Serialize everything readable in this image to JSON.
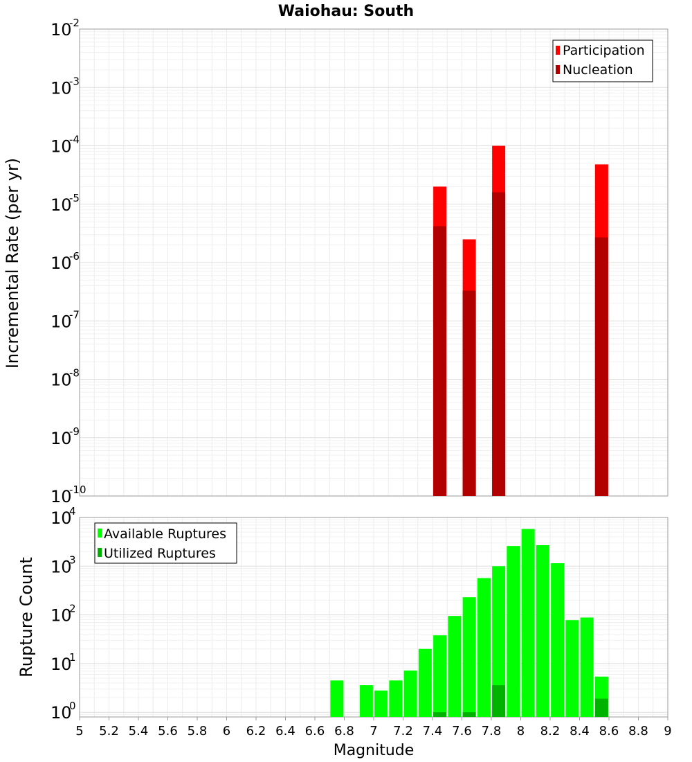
{
  "chart_data": [
    {
      "type": "bar",
      "title": "Waiohau: South",
      "xlabel": "",
      "ylabel": "Incremental Rate (per yr)",
      "yscale": "log",
      "ylim": [
        1e-10,
        0.01
      ],
      "xlim": [
        5,
        9
      ],
      "y_tick_exponents": [
        "-2",
        "-3",
        "-4",
        "-5",
        "-6",
        "-7",
        "-8",
        "-9",
        "-10"
      ],
      "y_tick_base": "10",
      "legend_position": "top-right",
      "series": [
        {
          "name": "Participation",
          "color": "#ff0000",
          "x": [
            7.45,
            7.65,
            7.85,
            8.55
          ],
          "values": [
            2e-05,
            2.5e-06,
            0.0001,
            4.8e-05
          ]
        },
        {
          "name": "Nucleation",
          "color": "#b20000",
          "x": [
            7.45,
            7.65,
            7.85,
            8.55
          ],
          "values": [
            4.2e-06,
            3.3e-07,
            1.6e-05,
            2.7e-06
          ]
        }
      ]
    },
    {
      "type": "bar",
      "title": "",
      "xlabel": "Magnitude",
      "ylabel": "Rupture Count",
      "yscale": "log",
      "ylim": [
        0.8,
        10000
      ],
      "xlim": [
        5,
        9
      ],
      "x_ticks": [
        "5",
        "5.2",
        "5.4",
        "5.6",
        "5.8",
        "6",
        "6.2",
        "6.4",
        "6.6",
        "6.8",
        "7",
        "7.2",
        "7.4",
        "7.6",
        "7.8",
        "8",
        "8.2",
        "8.4",
        "8.6",
        "8.8",
        "9"
      ],
      "y_tick_exponents": [
        "0",
        "1",
        "2",
        "3",
        "4"
      ],
      "y_tick_base": "10",
      "legend_position": "top-left",
      "series": [
        {
          "name": "Available Ruptures",
          "color": "#00ff00",
          "x": [
            6.75,
            6.95,
            7.05,
            7.15,
            7.25,
            7.35,
            7.45,
            7.55,
            7.65,
            7.75,
            7.85,
            7.95,
            8.05,
            8.15,
            8.25,
            8.35,
            8.45,
            8.55
          ],
          "values": [
            4.5,
            3.6,
            2.8,
            4.5,
            7.2,
            20,
            38,
            95,
            230,
            570,
            1000,
            2600,
            5800,
            2700,
            1150,
            78,
            88,
            5.4
          ]
        },
        {
          "name": "Utilized Ruptures",
          "color": "#00b200",
          "x": [
            7.45,
            7.65,
            7.85,
            8.55
          ],
          "values": [
            1,
            1,
            3.6,
            1.9
          ]
        }
      ]
    }
  ]
}
